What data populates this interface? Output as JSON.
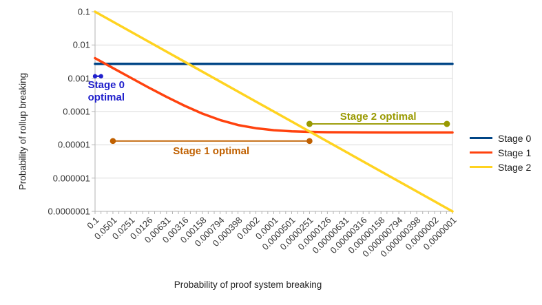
{
  "chart_data": {
    "type": "line",
    "x_scale": "log",
    "y_scale": "log",
    "x_range": [
      0.1,
      1e-07
    ],
    "y_range": [
      0.1,
      1e-07
    ],
    "grid": "horizontal-only",
    "legend_position": "right",
    "x_axis": {
      "title": "Probability of proof system breaking",
      "tick_labels": [
        "0.1",
        "0.0501",
        "0.0251",
        "0.0126",
        "0.00631",
        "0.00316",
        "0.00158",
        "0.000794",
        "0.000398",
        "0.0002",
        "0.0001",
        "0.0000501",
        "0.0000251",
        "0.0000126",
        "0.00000631",
        "0.00000316",
        "0.00000158",
        "0.000000794",
        "0.000000398",
        "0.0000002",
        "0.0000001"
      ]
    },
    "y_axis": {
      "title": "Probability of rollup breaking",
      "tick_labels": [
        "0.1",
        "0.01",
        "0.001",
        "0.0001",
        "0.00001",
        "0.000001",
        "0.0000001"
      ]
    },
    "series": [
      {
        "name": "Stage 0",
        "color": "#004586",
        "points": [
          [
            0.1,
            0.0027
          ],
          [
            1e-07,
            0.0027
          ]
        ]
      },
      {
        "name": "Stage 1",
        "color": "#FF420E",
        "points": [
          [
            0.1,
            0.00402
          ],
          [
            0.0501,
            0.00203
          ],
          [
            0.0251,
            0.00103
          ],
          [
            0.0126,
            0.000528
          ],
          [
            0.00631,
            0.000276
          ],
          [
            0.00316,
            0.00015
          ],
          [
            0.00158,
            8.67e-05
          ],
          [
            0.000794,
            5.53e-05
          ],
          [
            0.000398,
            3.94e-05
          ],
          [
            0.0002,
            3.15e-05
          ],
          [
            0.0001,
            2.75e-05
          ],
          [
            5.01e-05,
            2.55e-05
          ],
          [
            2.51e-05,
            2.45e-05
          ],
          [
            1.26e-05,
            2.4e-05
          ],
          [
            6.31e-06,
            2.38e-05
          ],
          [
            3.16e-06,
            2.36e-05
          ],
          [
            1e-06,
            2.35e-05
          ],
          [
            1e-07,
            2.35e-05
          ]
        ]
      },
      {
        "name": "Stage 2",
        "color": "#FFD320",
        "points": [
          [
            0.1,
            0.1
          ],
          [
            1e-07,
            1e-07
          ]
        ]
      }
    ],
    "annotations": [
      {
        "name": "stage-0-optimal",
        "label": "Stage 0\noptimal",
        "color": "#2020CC",
        "y": 0.00115,
        "x1": 0.1,
        "x2": 0.0794
      },
      {
        "name": "stage-1-optimal",
        "label": "Stage 1 optimal",
        "color": "#C06000",
        "y": 1.3e-05,
        "x1": 0.0501,
        "x2": 2.51e-05
      },
      {
        "name": "stage-2-optimal",
        "label": "Stage 2 optimal",
        "color": "#999900",
        "y": 4.25e-05,
        "x1": 2.51e-05,
        "x2": 1.24e-07
      }
    ]
  },
  "legend": [
    {
      "label": "Stage 0",
      "color": "#004586"
    },
    {
      "label": "Stage 1",
      "color": "#FF420E"
    },
    {
      "label": "Stage 2",
      "color": "#FFD320"
    }
  ],
  "colors": {
    "gridline": "#d9d9d9",
    "axis": "#b3b3b3",
    "tick_text": "#333333"
  }
}
